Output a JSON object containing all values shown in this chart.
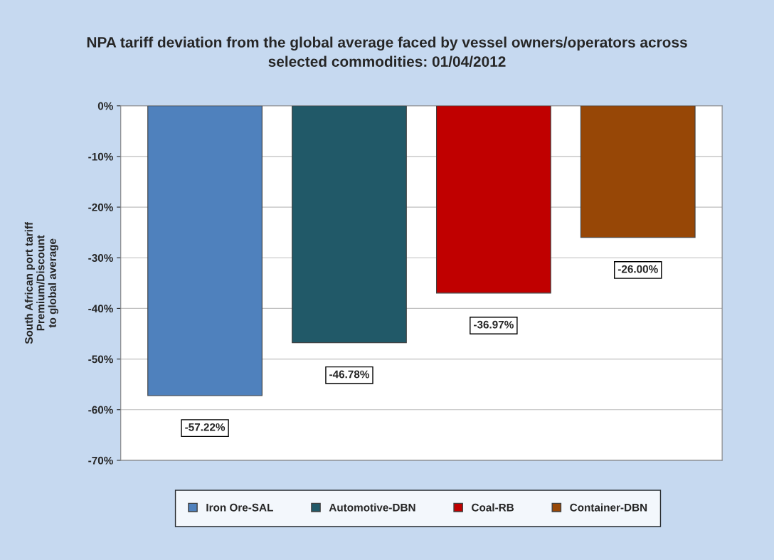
{
  "chart_data": {
    "type": "bar",
    "title": "NPA tariff deviation from the global average faced by vessel owners/operators across\nselected commodities: 01/04/2012",
    "ylabel": "South African port tariff\nPremium/Discount\nto global average",
    "categories": [
      null
    ],
    "series": [
      {
        "name": "Iron Ore-SAL",
        "color": "#4f81bd",
        "values": [
          -57.22
        ],
        "value_labels": [
          "-57.22%"
        ]
      },
      {
        "name": "Automotive-DBN",
        "color": "#215968",
        "values": [
          -46.78
        ],
        "value_labels": [
          "-46.78%"
        ]
      },
      {
        "name": "Coal-RB",
        "color": "#c00000",
        "values": [
          -36.97
        ],
        "value_labels": [
          "-36.97%"
        ]
      },
      {
        "name": "Container-DBN",
        "color": "#974706",
        "values": [
          -26.0
        ],
        "value_labels": [
          "-26.00%"
        ]
      }
    ],
    "ylim": [
      -70,
      0
    ],
    "yticks": [
      {
        "value": 0,
        "label": "0%"
      },
      {
        "value": -10,
        "label": "-10%"
      },
      {
        "value": -20,
        "label": "-20%"
      },
      {
        "value": -30,
        "label": "-30%"
      },
      {
        "value": -40,
        "label": "-40%"
      },
      {
        "value": -50,
        "label": "-50%"
      },
      {
        "value": -60,
        "label": "-60%"
      },
      {
        "value": -70,
        "label": "-70%"
      }
    ],
    "grid": "y",
    "legend": "bottom"
  }
}
